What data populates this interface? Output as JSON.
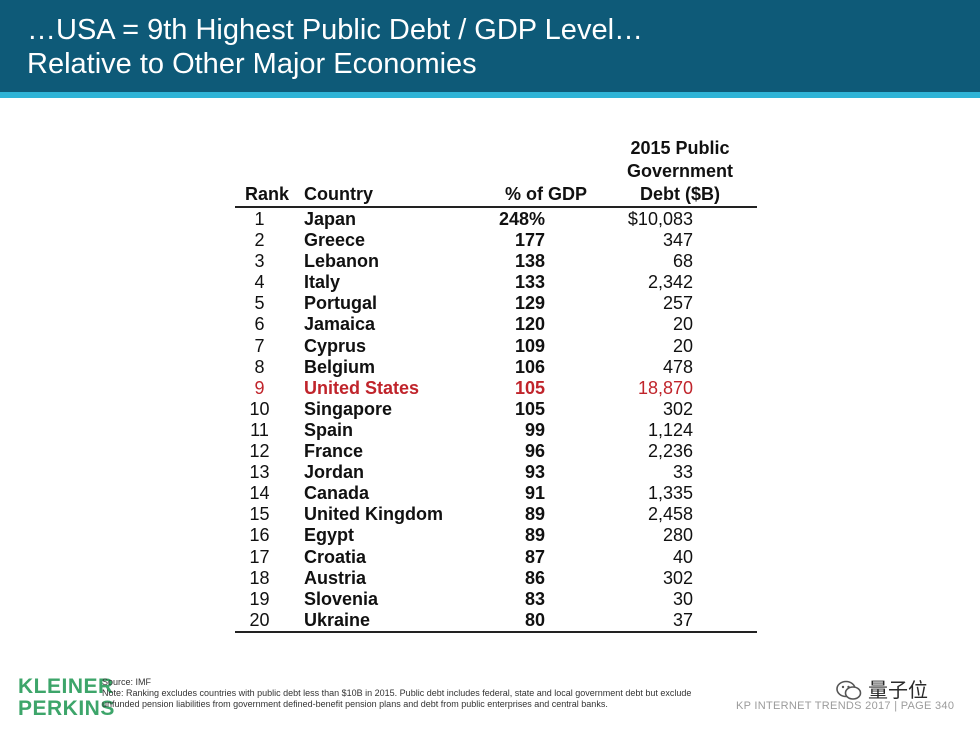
{
  "title": {
    "line1": "…USA = 9th Highest Public Debt / GDP Level…",
    "line2": "Relative to Other Major Economies"
  },
  "table": {
    "headers": {
      "rank": "Rank",
      "country": "Country",
      "pct": "% of GDP",
      "debt_line1": "2015 Public",
      "debt_line2": "Government",
      "debt_line3": "Debt ($B)"
    },
    "rows": [
      {
        "rank": "1",
        "country": "Japan",
        "pct": "248%",
        "debt": "$10,083"
      },
      {
        "rank": "2",
        "country": "Greece",
        "pct": "177",
        "debt": "347"
      },
      {
        "rank": "3",
        "country": "Lebanon",
        "pct": "138",
        "debt": "68"
      },
      {
        "rank": "4",
        "country": "Italy",
        "pct": "133",
        "debt": "2,342"
      },
      {
        "rank": "5",
        "country": "Portugal",
        "pct": "129",
        "debt": "257"
      },
      {
        "rank": "6",
        "country": "Jamaica",
        "pct": "120",
        "debt": "20"
      },
      {
        "rank": "7",
        "country": "Cyprus",
        "pct": "109",
        "debt": "20"
      },
      {
        "rank": "8",
        "country": "Belgium",
        "pct": "106",
        "debt": "478"
      },
      {
        "rank": "9",
        "country": "United States",
        "pct": "105",
        "debt": "18,870"
      },
      {
        "rank": "10",
        "country": "Singapore",
        "pct": "105",
        "debt": "302"
      },
      {
        "rank": "11",
        "country": "Spain",
        "pct": "99",
        "debt": "1,124"
      },
      {
        "rank": "12",
        "country": "France",
        "pct": "96",
        "debt": "2,236"
      },
      {
        "rank": "13",
        "country": "Jordan",
        "pct": "93",
        "debt": "33"
      },
      {
        "rank": "14",
        "country": "Canada",
        "pct": "91",
        "debt": "1,335"
      },
      {
        "rank": "15",
        "country": "United Kingdom",
        "pct": "89",
        "debt": "2,458"
      },
      {
        "rank": "16",
        "country": "Egypt",
        "pct": "89",
        "debt": "280"
      },
      {
        "rank": "17",
        "country": "Croatia",
        "pct": "87",
        "debt": "40"
      },
      {
        "rank": "18",
        "country": "Austria",
        "pct": "86",
        "debt": "302"
      },
      {
        "rank": "19",
        "country": "Slovenia",
        "pct": "83",
        "debt": "30"
      },
      {
        "rank": "20",
        "country": "Ukraine",
        "pct": "80",
        "debt": "37"
      }
    ]
  },
  "footer": {
    "logo_line1": "KLEINER",
    "logo_line2": "PERKINS",
    "source": "Source: IMF",
    "note": "Note: Ranking excludes countries with public debt less than $10B in 2015. Public debt includes federal, state and local government debt but exclude unfunded pension liabilities from government defined-benefit pension plans and debt from public enterprises and central banks.",
    "page_ref": "KP INTERNET TRENDS 2017  |  PAGE 340",
    "watermark": "量子位"
  },
  "colors": {
    "header_bg": "#0e5a78",
    "stripe": "#2fb3d6",
    "highlight": "#c0242b",
    "logo": "#3da56a"
  }
}
